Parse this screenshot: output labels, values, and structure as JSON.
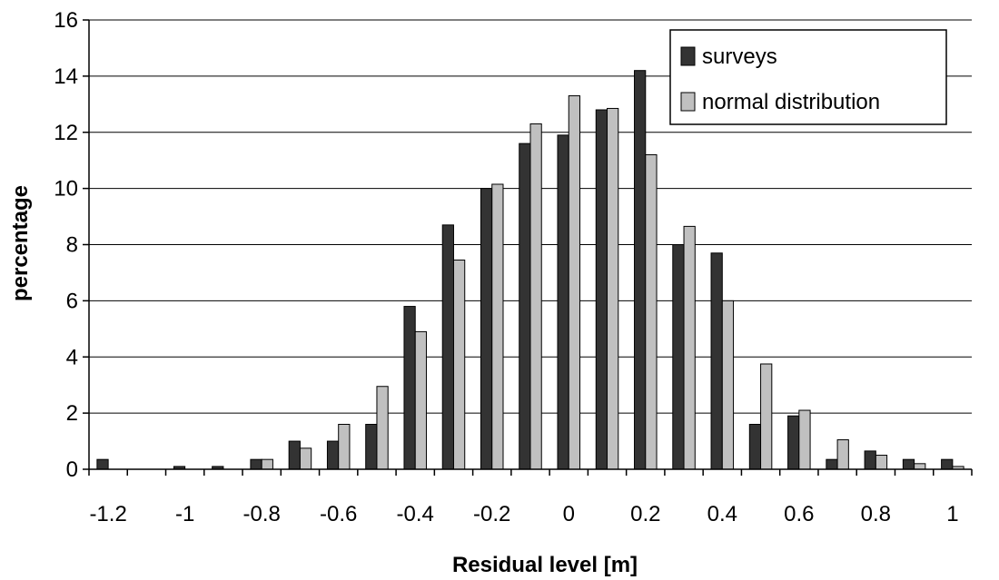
{
  "chart_data": {
    "type": "bar",
    "title": "",
    "xlabel": "Residual level [m]",
    "ylabel": "percentage",
    "ylim": [
      0,
      16
    ],
    "yticks": [
      "0",
      "2",
      "4",
      "6",
      "8",
      "10",
      "12",
      "14",
      "16"
    ],
    "categories": [
      -1.2,
      -1.1,
      -1.0,
      -0.9,
      -0.8,
      -0.7,
      -0.6,
      -0.5,
      -0.4,
      -0.3,
      -0.2,
      -0.1,
      0.0,
      0.1,
      0.2,
      0.3,
      0.4,
      0.5,
      0.6,
      0.7,
      0.8,
      0.9,
      1.0
    ],
    "xtick_labels": [
      "-1.2",
      "-1",
      "-0.8",
      "-0.6",
      "-0.4",
      "-0.2",
      "0",
      "0.2",
      "0.4",
      "0.6",
      "0.8",
      "1"
    ],
    "grid": true,
    "legend_position": "top-right",
    "series": [
      {
        "name": "surveys",
        "color": "#333333",
        "values": [
          0.35,
          0,
          0.1,
          0.1,
          0.35,
          1.0,
          1.0,
          1.6,
          5.8,
          8.7,
          10.0,
          11.6,
          11.9,
          12.8,
          14.2,
          8.0,
          7.7,
          1.6,
          1.9,
          0.35,
          0.65,
          0.35,
          0.35
        ]
      },
      {
        "name": "normal distribution",
        "color": "#c0c0c0",
        "values": [
          0,
          0,
          0,
          0,
          0.35,
          0.75,
          1.6,
          2.95,
          4.9,
          7.45,
          10.15,
          12.3,
          13.3,
          12.85,
          11.2,
          8.65,
          6.0,
          3.75,
          2.1,
          1.05,
          0.5,
          0.2,
          0.1
        ]
      }
    ]
  }
}
